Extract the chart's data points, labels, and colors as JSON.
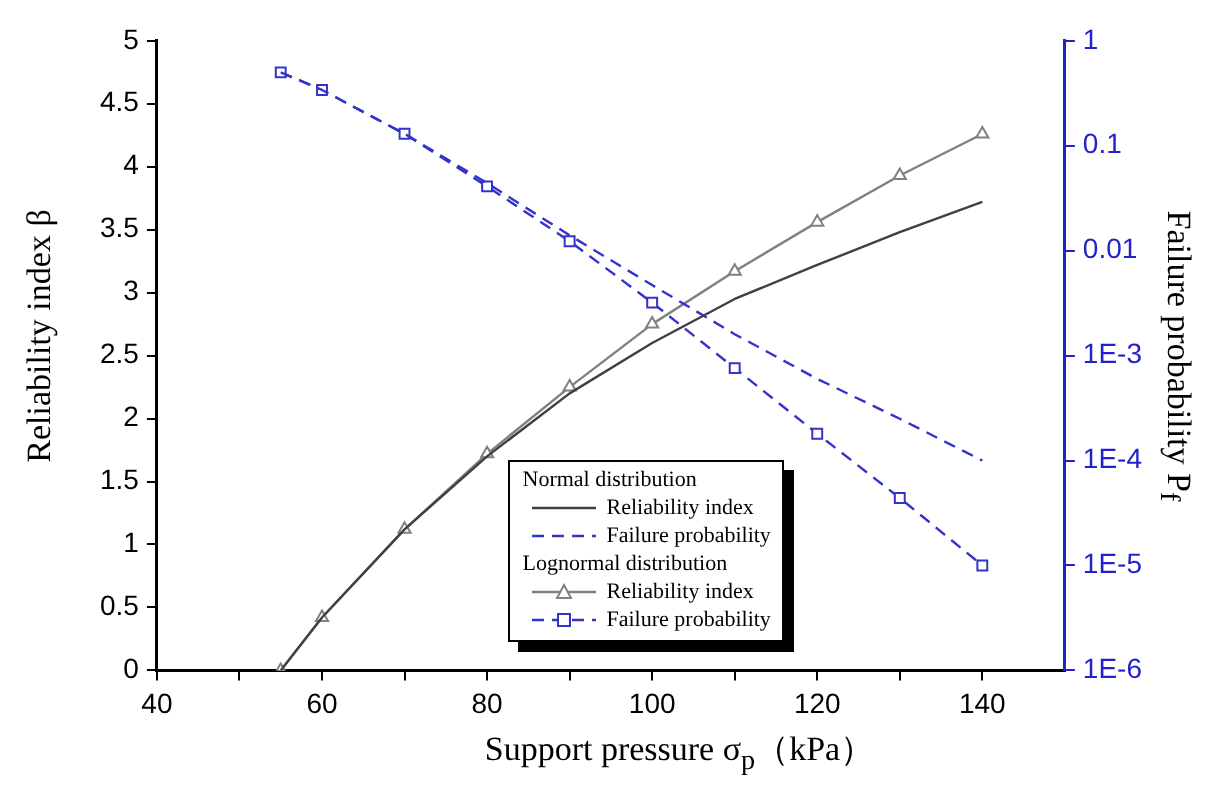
{
  "chart_data": {
    "type": "line",
    "x": [
      55,
      60,
      70,
      80,
      90,
      100,
      110,
      120,
      130,
      140
    ],
    "xlabel": "Support pressure σ$_{p}$（kPa）",
    "ylabel": "Reliability index β",
    "y2label": "Failure probability P$_{f}$",
    "xlim": [
      40,
      150
    ],
    "xticks": [
      40,
      {
        "value": 50,
        "label": null
      },
      60,
      {
        "value": 70,
        "label": null
      },
      80,
      {
        "value": 90,
        "label": null
      },
      100,
      {
        "value": 110,
        "label": null
      },
      120,
      {
        "value": 130,
        "label": null
      },
      140
    ],
    "ylim": [
      0,
      5
    ],
    "yticks": [
      0.0,
      0.5,
      1.0,
      1.5,
      2.0,
      2.5,
      3.0,
      3.5,
      4.0,
      4.5,
      5.0
    ],
    "y2lim": [
      1e-06,
      1
    ],
    "y2ticks": [
      {
        "value": 1,
        "label": "1"
      },
      {
        "value": 0.1,
        "label": "0.1"
      },
      {
        "value": 0.01,
        "label": "0.01"
      },
      {
        "value": 0.001,
        "label": "1E-3"
      },
      {
        "value": 0.0001,
        "label": "1E-4"
      },
      {
        "value": 1e-05,
        "label": "1E-5"
      },
      {
        "value": 1e-06,
        "label": "1E-6"
      }
    ],
    "log": "y2",
    "grid": false,
    "legend": "bottom right",
    "annotations": [
      "Normal distribution",
      "Lognormal distribution"
    ],
    "series": [
      {
        "name": "Reliability index",
        "color": "#404040",
        "marker": "none",
        "line_style": "solid",
        "values": [
          0,
          0.42,
          1.12,
          1.7,
          2.2,
          2.6,
          2.95,
          3.22,
          3.48,
          3.72
        ]
      },
      {
        "name": "Failure probability",
        "color": "#3333cc",
        "marker": "none",
        "line_style": "dashed",
        "axis": "y2",
        "values": [
          0.5,
          0.34,
          0.13,
          0.044,
          0.014,
          0.0047,
          0.0016,
          0.0006,
          0.00025,
          0.0001
        ]
      },
      {
        "name": "Reliability index",
        "color": "#808080",
        "marker": "triangle",
        "line_style": "solid",
        "values": [
          0,
          0.42,
          1.12,
          1.72,
          2.25,
          2.75,
          3.17,
          3.56,
          3.93,
          4.26
        ]
      },
      {
        "name": "Failure probability",
        "color": "#3333cc",
        "marker": "square",
        "line_style": "dashed",
        "axis": "y2",
        "values": [
          0.5,
          0.34,
          0.13,
          0.041,
          0.0123,
          0.0032,
          0.00076,
          0.00018,
          4.4e-05,
          1e-05
        ]
      }
    ]
  }
}
